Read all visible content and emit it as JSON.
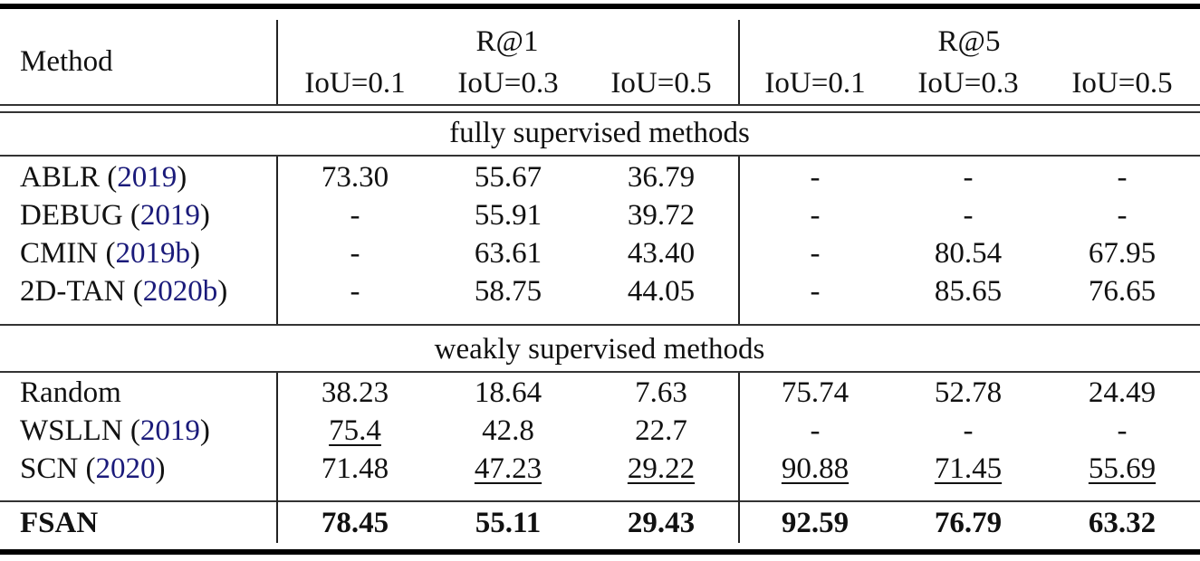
{
  "table": {
    "header": {
      "method_label": "Method",
      "groups": [
        {
          "label": "R@1",
          "columns": [
            "IoU=0.1",
            "IoU=0.3",
            "IoU=0.5"
          ]
        },
        {
          "label": "R@5",
          "columns": [
            "IoU=0.1",
            "IoU=0.3",
            "IoU=0.5"
          ]
        }
      ]
    },
    "sections": [
      {
        "title": "fully supervised methods",
        "rows": [
          {
            "method": "ABLR",
            "cite": "2019",
            "values": [
              "73.30",
              "55.67",
              "36.79",
              "-",
              "-",
              "-"
            ]
          },
          {
            "method": "DEBUG",
            "cite": "2019",
            "values": [
              "-",
              "55.91",
              "39.72",
              "-",
              "-",
              "-"
            ]
          },
          {
            "method": "CMIN",
            "cite": "2019b",
            "values": [
              "-",
              "63.61",
              "43.40",
              "-",
              "80.54",
              "67.95"
            ]
          },
          {
            "method": "2D-TAN",
            "cite": "2020b",
            "values": [
              "-",
              "58.75",
              "44.05",
              "-",
              "85.65",
              "76.65"
            ]
          }
        ]
      },
      {
        "title": "weakly supervised methods",
        "rows": [
          {
            "method": "Random",
            "cite": "",
            "values": [
              "38.23",
              "18.64",
              "7.63",
              "75.74",
              "52.78",
              "24.49"
            ]
          },
          {
            "method": "WSLLN",
            "cite": "2019",
            "values": [
              "75.4",
              "42.8",
              "22.7",
              "-",
              "-",
              "-"
            ],
            "underlined": [
              0
            ]
          },
          {
            "method": "SCN",
            "cite": "2020",
            "values": [
              "71.48",
              "47.23",
              "29.22",
              "90.88",
              "71.45",
              "55.69"
            ],
            "underlined": [
              1,
              2,
              3,
              4,
              5
            ]
          },
          {
            "method": "FSAN",
            "cite": "",
            "values": [
              "78.45",
              "55.11",
              "29.43",
              "92.59",
              "76.79",
              "63.32"
            ],
            "bold": true
          }
        ]
      }
    ],
    "colors": {
      "citation": "#1a1a7a",
      "text": "#111111"
    }
  }
}
